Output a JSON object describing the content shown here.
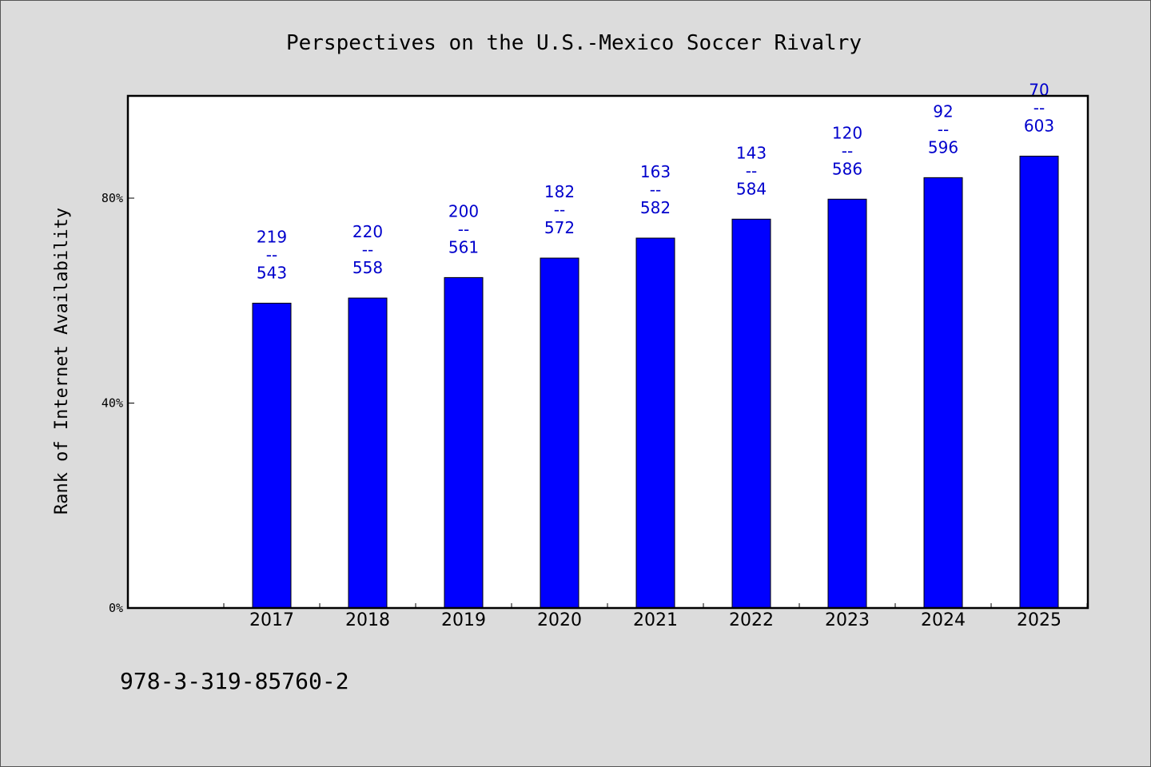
{
  "chart_data": {
    "type": "bar",
    "title": "Perspectives on the U.S.-Mexico Soccer Rivalry",
    "ylabel": "Rank of Internet Availability",
    "xlabel": "",
    "categories": [
      "2017",
      "2018",
      "2019",
      "2020",
      "2021",
      "2022",
      "2023",
      "2024",
      "2025"
    ],
    "values": [
      59.5,
      60.5,
      64.5,
      68.3,
      72.2,
      75.9,
      79.8,
      84.0,
      88.2
    ],
    "data_labels": [
      {
        "top": "219",
        "mid": "--",
        "bottom": "543"
      },
      {
        "top": "220",
        "mid": "--",
        "bottom": "558"
      },
      {
        "top": "200",
        "mid": "--",
        "bottom": "561"
      },
      {
        "top": "182",
        "mid": "--",
        "bottom": "572"
      },
      {
        "top": "163",
        "mid": "--",
        "bottom": "582"
      },
      {
        "top": "143",
        "mid": "--",
        "bottom": "584"
      },
      {
        "top": "120",
        "mid": "--",
        "bottom": "586"
      },
      {
        "top": "92",
        "mid": "--",
        "bottom": "596"
      },
      {
        "top": "70",
        "mid": "--",
        "bottom": "603"
      }
    ],
    "yticks": [
      {
        "value": 0,
        "label": "0%"
      },
      {
        "value": 40,
        "label": "40%"
      },
      {
        "value": 80,
        "label": "80%"
      }
    ],
    "ylim": [
      0,
      100
    ],
    "grid": false,
    "legend": "none",
    "bar_color": "#0000ff",
    "label_color": "#0000cc"
  },
  "footer": {
    "isbn": "978-3-319-85760-2"
  }
}
